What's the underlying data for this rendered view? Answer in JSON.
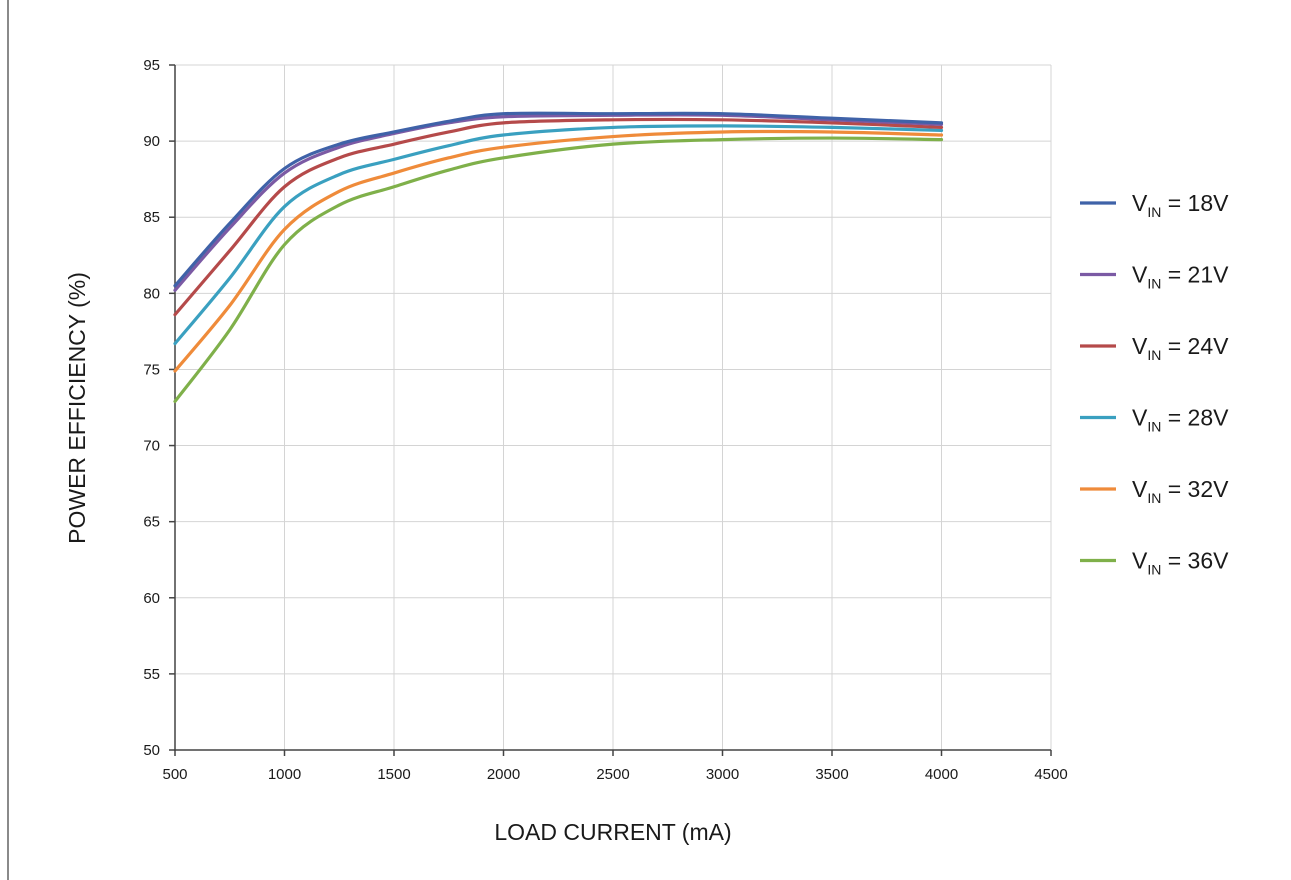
{
  "chart_data": {
    "type": "line",
    "title": "",
    "xlabel": "LOAD CURRENT (mA)",
    "ylabel": "POWER EFFICIENCY (%)",
    "xlim": [
      500,
      4500
    ],
    "ylim": [
      50,
      95
    ],
    "xticks": [
      500,
      1000,
      1500,
      2000,
      2500,
      3000,
      3500,
      4000,
      4500
    ],
    "yticks": [
      50,
      55,
      60,
      65,
      70,
      75,
      80,
      85,
      90,
      95
    ],
    "grid": true,
    "legend_position": "right",
    "x": [
      500,
      750,
      1000,
      1250,
      1500,
      1750,
      2000,
      2500,
      3000,
      3500,
      4000
    ],
    "series": [
      {
        "name_main": "V",
        "name_sub": "IN",
        "name_rest": " = 18V",
        "color": "#3f62a8",
        "values": [
          80.5,
          84.6,
          88.2,
          89.8,
          90.6,
          91.3,
          91.8,
          91.8,
          91.8,
          91.5,
          91.2
        ]
      },
      {
        "name_main": "V",
        "name_sub": "IN",
        "name_rest": " = 21V",
        "color": "#7b5aa4",
        "values": [
          80.2,
          84.3,
          87.9,
          89.6,
          90.5,
          91.2,
          91.6,
          91.7,
          91.7,
          91.4,
          91.1
        ]
      },
      {
        "name_main": "V",
        "name_sub": "IN",
        "name_rest": " = 24V",
        "color": "#b54a4a",
        "values": [
          78.6,
          82.8,
          87.0,
          88.9,
          89.8,
          90.6,
          91.2,
          91.4,
          91.4,
          91.2,
          90.9
        ]
      },
      {
        "name_main": "V",
        "name_sub": "IN",
        "name_rest": " = 28V",
        "color": "#3aa0c0",
        "values": [
          76.7,
          81.0,
          85.7,
          87.8,
          88.8,
          89.7,
          90.4,
          90.9,
          91.0,
          90.9,
          90.7
        ]
      },
      {
        "name_main": "V",
        "name_sub": "IN",
        "name_rest": " = 32V",
        "color": "#ef8b3a",
        "values": [
          74.9,
          79.2,
          84.2,
          86.7,
          87.9,
          88.9,
          89.6,
          90.3,
          90.6,
          90.6,
          90.4
        ]
      },
      {
        "name_main": "V",
        "name_sub": "IN",
        "name_rest": " = 36V",
        "color": "#7fb04a",
        "values": [
          72.9,
          77.6,
          83.2,
          85.8,
          87.0,
          88.1,
          88.9,
          89.8,
          90.1,
          90.2,
          90.1
        ]
      }
    ]
  }
}
